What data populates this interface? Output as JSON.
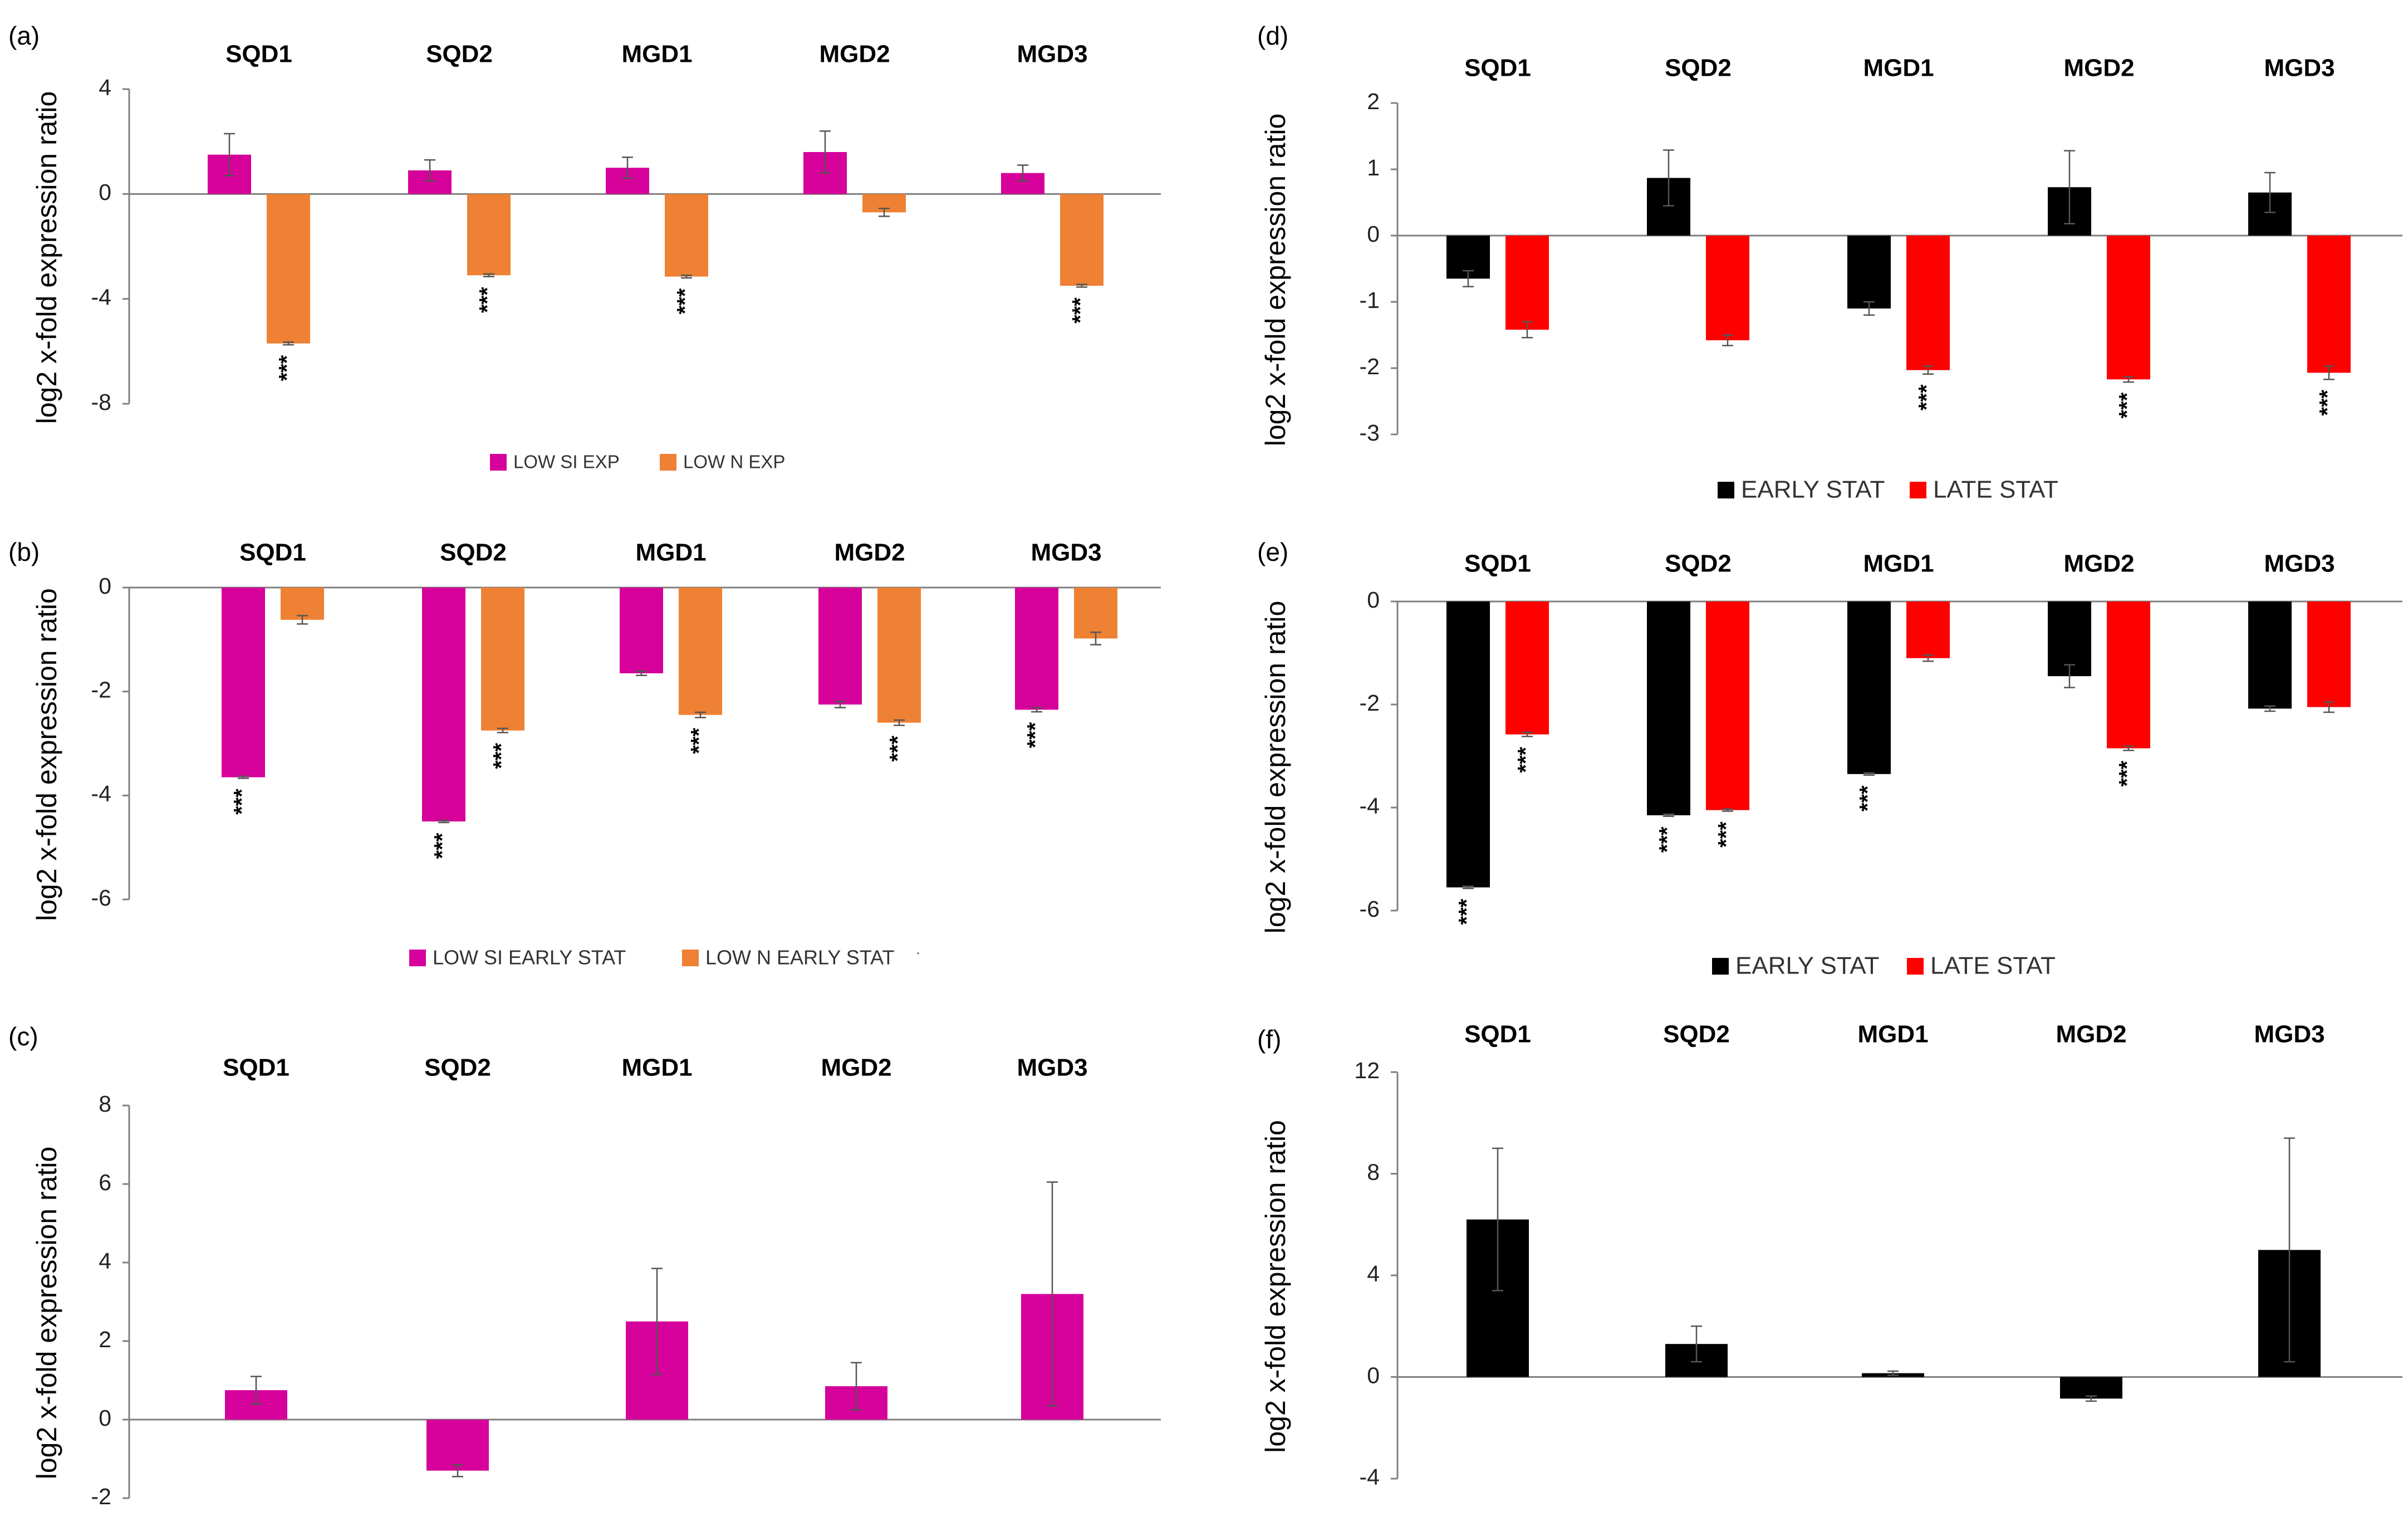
{
  "figure": {
    "y_axis_label": "log2 x-fold expression ratio",
    "significance_marker": "***",
    "colors": {
      "magenta": "#D6009A",
      "orange": "#EE8133",
      "black": "#000000",
      "red": "#FF0000",
      "axis": "#808080"
    }
  },
  "chart_data": [
    {
      "panel": "(a)",
      "type": "bar",
      "title": "",
      "categories": [
        "SQD1",
        "SQD2",
        "MGD1",
        "MGD2",
        "MGD3"
      ],
      "ylabel": "log2 x-fold expression ratio",
      "xlabel": "",
      "ylim": [
        -8,
        4
      ],
      "yticks": [
        4,
        0,
        -4,
        -8
      ],
      "legend_position": "bottom",
      "series": [
        {
          "name": "LOW SI EXP",
          "color": "#D6009A",
          "values": [
            1.5,
            0.9,
            1.0,
            1.6,
            0.8
          ],
          "errors": [
            0.8,
            0.4,
            0.4,
            0.8,
            0.3
          ],
          "sig": [
            false,
            false,
            false,
            false,
            false
          ]
        },
        {
          "name": "LOW N EXP",
          "color": "#EE8133",
          "values": [
            -5.7,
            -3.1,
            -3.15,
            -0.7,
            -3.5
          ],
          "errors": [
            0.05,
            0.05,
            0.05,
            0.15,
            0.05
          ],
          "sig": [
            true,
            true,
            true,
            false,
            true
          ]
        }
      ]
    },
    {
      "panel": "(b)",
      "type": "bar",
      "title": "",
      "categories": [
        "SQD1",
        "SQD2",
        "MGD1",
        "MGD2",
        "MGD3"
      ],
      "ylabel": "log2 x-fold expression ratio",
      "xlabel": "",
      "ylim": [
        -6,
        0
      ],
      "yticks": [
        0,
        -2,
        -4,
        -6
      ],
      "legend_position": "bottom",
      "legend_extra": "·",
      "series": [
        {
          "name": "LOW SI EARLY STAT",
          "color": "#D6009A",
          "values": [
            -3.65,
            -4.5,
            -1.65,
            -2.25,
            -2.35
          ],
          "errors": [
            0.02,
            0.02,
            0.04,
            0.06,
            0.04
          ],
          "sig": [
            true,
            true,
            false,
            false,
            true
          ]
        },
        {
          "name": "LOW N EARLY STAT",
          "color": "#EE8133",
          "values": [
            -0.62,
            -2.75,
            -2.45,
            -2.6,
            -0.98
          ],
          "errors": [
            0.08,
            0.04,
            0.05,
            0.05,
            0.12
          ],
          "sig": [
            false,
            true,
            true,
            true,
            false
          ]
        }
      ]
    },
    {
      "panel": "(c)",
      "type": "bar",
      "title": "",
      "categories": [
        "SQD1",
        "SQD2",
        "MGD1",
        "MGD2",
        "MGD3"
      ],
      "ylabel": "log2 x-fold expression ratio",
      "xlabel": "",
      "ylim": [
        -2,
        8
      ],
      "yticks": [
        8,
        6,
        4,
        2,
        0,
        -2
      ],
      "legend_position": "none",
      "series": [
        {
          "name": "",
          "color": "#D6009A",
          "values": [
            0.75,
            -1.3,
            2.5,
            0.85,
            3.2
          ],
          "errors": [
            0.35,
            0.15,
            1.35,
            0.6,
            2.85
          ],
          "sig": [
            false,
            false,
            false,
            false,
            false
          ]
        }
      ]
    },
    {
      "panel": "(d)",
      "type": "bar",
      "title": "",
      "categories": [
        "SQD1",
        "SQD2",
        "MGD1",
        "MGD2",
        "MGD3"
      ],
      "ylabel": "log2 x-fold expression ratio",
      "xlabel": "",
      "ylim": [
        -3,
        2
      ],
      "yticks": [
        2,
        1,
        0,
        -1,
        -2,
        -3
      ],
      "legend_position": "bottom",
      "series": [
        {
          "name": "EARLY STAT",
          "color": "#000000",
          "values": [
            -0.65,
            0.87,
            -1.1,
            0.73,
            0.65
          ],
          "errors": [
            0.12,
            0.42,
            0.1,
            0.55,
            0.3
          ],
          "sig": [
            false,
            false,
            false,
            false,
            false
          ]
        },
        {
          "name": "LATE STAT",
          "color": "#FF0000",
          "values": [
            -1.42,
            -1.58,
            -2.03,
            -2.17,
            -2.07
          ],
          "errors": [
            0.12,
            0.08,
            0.06,
            0.04,
            0.1
          ],
          "sig": [
            false,
            false,
            true,
            true,
            true
          ]
        }
      ]
    },
    {
      "panel": "(e)",
      "type": "bar",
      "title": "",
      "categories": [
        "SQD1",
        "SQD2",
        "MGD1",
        "MGD2",
        "MGD3"
      ],
      "ylabel": "log2 x-fold expression ratio",
      "xlabel": "",
      "ylim": [
        -6,
        0
      ],
      "yticks": [
        0,
        -2,
        -4,
        -6
      ],
      "legend_position": "bottom",
      "series": [
        {
          "name": "EARLY STAT",
          "color": "#000000",
          "values": [
            -5.55,
            -4.15,
            -3.35,
            -1.45,
            -2.08
          ],
          "errors": [
            0.02,
            0.02,
            0.02,
            0.22,
            0.05
          ],
          "sig": [
            true,
            true,
            true,
            false,
            false
          ]
        },
        {
          "name": "LATE STAT",
          "color": "#FF0000",
          "values": [
            -2.58,
            -4.05,
            -1.1,
            -2.85,
            -2.05
          ],
          "errors": [
            0.04,
            0.02,
            0.06,
            0.04,
            0.1
          ],
          "sig": [
            true,
            true,
            false,
            true,
            false
          ]
        }
      ]
    },
    {
      "panel": "(f)",
      "type": "bar",
      "title": "",
      "categories": [
        "SQD1",
        "SQD2",
        "MGD1",
        "MGD2",
        "MGD3"
      ],
      "ylabel": "log2 x-fold expression ratio",
      "xlabel": "",
      "ylim": [
        -4,
        12
      ],
      "yticks": [
        12,
        8,
        4,
        0,
        -4
      ],
      "legend_position": "none",
      "series": [
        {
          "name": "",
          "color": "#000000",
          "values": [
            6.2,
            1.3,
            0.15,
            -0.85,
            5.0
          ],
          "errors": [
            2.8,
            0.7,
            0.08,
            0.1,
            4.4
          ],
          "sig": [
            false,
            false,
            false,
            false,
            false
          ]
        }
      ]
    }
  ]
}
